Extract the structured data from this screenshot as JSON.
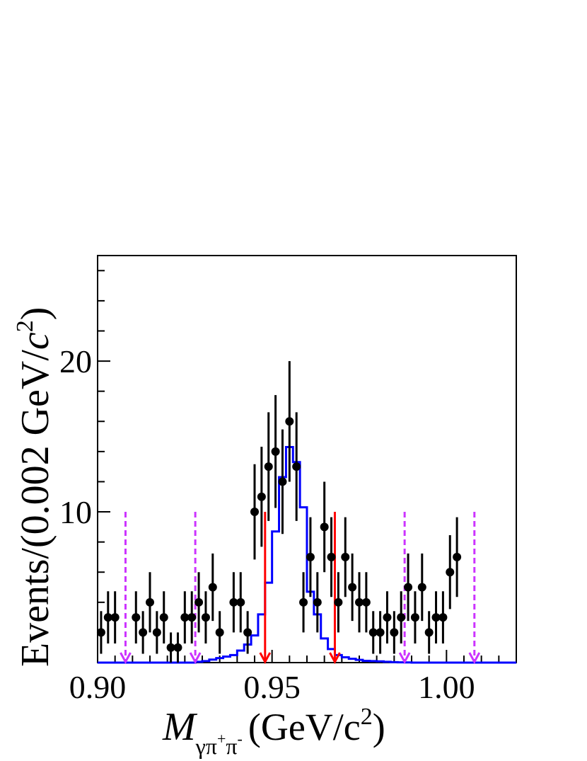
{
  "chart_data": {
    "type": "histogram",
    "xlabel": {
      "symbol": "M",
      "subscript_parts": [
        "γπ",
        "+",
        "π",
        "-"
      ],
      "units": "(GeV/c",
      "units_sup": "2",
      "units_close": ")"
    },
    "ylabel": {
      "main": "Events/(0.002 GeV/",
      "c": "c",
      "sup": "2",
      "close": ")"
    },
    "xlim": [
      0.9,
      1.02
    ],
    "ylim": [
      0,
      27
    ],
    "x_ticks": [
      {
        "value": 0.9,
        "label": "0.90"
      },
      {
        "value": 0.95,
        "label": "0.95"
      },
      {
        "value": 1.0,
        "label": "1.00"
      }
    ],
    "y_ticks": [
      {
        "value": 10,
        "label": "10"
      },
      {
        "value": 20,
        "label": "20"
      }
    ],
    "data_points": {
      "marker_color": "#000000",
      "x": [
        0.901,
        0.903,
        0.905,
        0.907,
        0.909,
        0.911,
        0.913,
        0.915,
        0.917,
        0.919,
        0.921,
        0.923,
        0.925,
        0.927,
        0.929,
        0.931,
        0.933,
        0.935,
        0.937,
        0.939,
        0.941,
        0.943,
        0.945,
        0.947,
        0.949,
        0.951,
        0.953,
        0.955,
        0.957,
        0.959,
        0.961,
        0.963,
        0.965,
        0.967,
        0.969,
        0.971,
        0.973,
        0.975,
        0.977,
        0.979,
        0.981,
        0.983,
        0.985,
        0.987,
        0.989,
        0.991,
        0.993,
        0.995,
        0.997,
        0.999,
        1.001,
        1.003,
        1.005,
        1.007,
        1.009,
        1.011,
        1.013,
        1.015,
        1.017,
        1.019
      ],
      "y": [
        2,
        3,
        3,
        0,
        0,
        3,
        2,
        4,
        2,
        3,
        1,
        1,
        3,
        3,
        4,
        3,
        5,
        2,
        0,
        4,
        4,
        2,
        10,
        11,
        13,
        14,
        12,
        16,
        13,
        4,
        7,
        4,
        9,
        7,
        4,
        7,
        5,
        4,
        4,
        2,
        2,
        3,
        2,
        3,
        5,
        3,
        5,
        2,
        3,
        3,
        6,
        7,
        0,
        0,
        0,
        0,
        0,
        0,
        0,
        0
      ]
    },
    "mc_histogram": {
      "color": "#0000ff",
      "bin_width": 0.002,
      "bin_lo": [
        0.9,
        0.902,
        0.904,
        0.906,
        0.908,
        0.91,
        0.912,
        0.914,
        0.916,
        0.918,
        0.92,
        0.922,
        0.924,
        0.926,
        0.928,
        0.93,
        0.932,
        0.934,
        0.936,
        0.938,
        0.94,
        0.942,
        0.944,
        0.946,
        0.948,
        0.95,
        0.952,
        0.954,
        0.956,
        0.958,
        0.96,
        0.962,
        0.964,
        0.966,
        0.968,
        0.97,
        0.972,
        0.974,
        0.976,
        0.978,
        0.98,
        0.982,
        0.984,
        0.986,
        0.988,
        0.99,
        1.0,
        1.01,
        1.018
      ],
      "values": [
        0,
        0,
        0,
        0,
        0,
        0,
        0,
        0,
        0,
        0,
        0,
        0,
        0,
        0,
        0.05,
        0.1,
        0.2,
        0.3,
        0.4,
        0.5,
        0.8,
        1.2,
        1.8,
        3.2,
        5.3,
        8.7,
        12.3,
        14.3,
        13.3,
        10.3,
        4.7,
        3.2,
        1.6,
        0.9,
        0.5,
        0.35,
        0.25,
        0.18,
        0.12,
        0.1,
        0.08,
        0.05,
        0.03,
        0.02,
        0.01,
        0,
        0,
        0,
        0
      ]
    },
    "signal_window": {
      "color": "#ff0000",
      "x": [
        0.948,
        0.968
      ],
      "height": 10
    },
    "sideband_lines": {
      "color": "#cc33ff",
      "x": [
        0.908,
        0.928,
        0.988,
        1.008
      ],
      "height": 10
    }
  }
}
